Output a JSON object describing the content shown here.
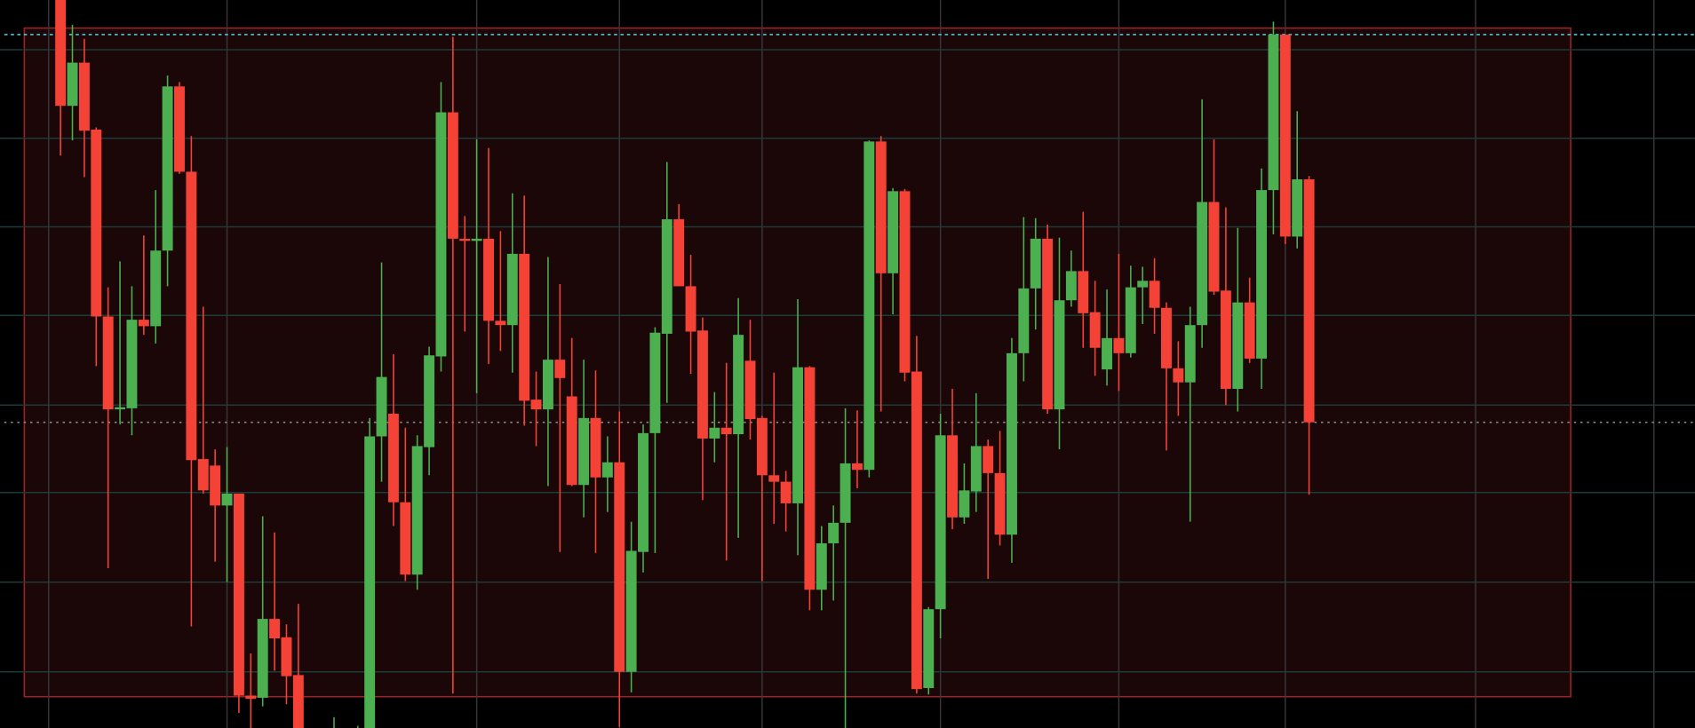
{
  "chart_data": {
    "type": "candlestick",
    "title": "",
    "xlabel": "",
    "ylabel": "",
    "ylim": [
      32.6,
      100
    ],
    "grid": true,
    "legend": "none",
    "colors": {
      "up": "#4caf50",
      "down": "#f44336",
      "background": "#000000",
      "zone_fill": "#1b0707",
      "zone_border": "#9a2424",
      "grid_h": "#1d3b38",
      "grid_v": "#3b3539",
      "last_line": "#8a8a8a",
      "high_line": "#4fc3d6"
    },
    "price_lines": [
      {
        "role": "high",
        "price": 96.8,
        "style": "dashed"
      },
      {
        "role": "last",
        "price": 60.9,
        "style": "dotted"
      }
    ],
    "zone": {
      "top": 97.4,
      "bottom": 35.5
    },
    "candle_fields": [
      "open",
      "high",
      "low",
      "close"
    ],
    "candles": [
      [
        100.5,
        101,
        85.6,
        90.2
      ],
      [
        90.2,
        97.7,
        87,
        94.2
      ],
      [
        94.2,
        96.4,
        83.6,
        87.9
      ],
      [
        88,
        88.2,
        66.1,
        70.7
      ],
      [
        70.7,
        73.4,
        47.4,
        62.1
      ],
      [
        62.1,
        75.8,
        60.7,
        62.3
      ],
      [
        62.2,
        73.5,
        59.7,
        70.4
      ],
      [
        70.4,
        78.2,
        69,
        69.8
      ],
      [
        69.8,
        82.4,
        68.2,
        76.8
      ],
      [
        76.8,
        93,
        73.5,
        92
      ],
      [
        92,
        92.4,
        83.9,
        84.1
      ],
      [
        84.1,
        87.4,
        42,
        57.4
      ],
      [
        57.5,
        71.6,
        54.3,
        54.6
      ],
      [
        56.9,
        58.4,
        48,
        53.2
      ],
      [
        53.2,
        58.6,
        46.1,
        54.3
      ],
      [
        54.3,
        54.3,
        34,
        35.6
      ],
      [
        35.6,
        39.5,
        31,
        35.3
      ],
      [
        35.4,
        52.2,
        34.6,
        42.7
      ],
      [
        42.7,
        50.7,
        37.9,
        40.9
      ],
      [
        41,
        42.2,
        34.8,
        37.4
      ],
      [
        37.5,
        44.1,
        28,
        30
      ],
      null,
      null,
      [
        28,
        33.6,
        26,
        30
      ],
      null,
      [
        28,
        32.8,
        26,
        30
      ],
      [
        30,
        61.3,
        28,
        59.6
      ],
      [
        59.6,
        75.7,
        55.4,
        65.1
      ],
      [
        61.7,
        67.2,
        51.3,
        53.5
      ],
      [
        53.5,
        60.4,
        46.2,
        46.8
      ],
      [
        46.8,
        59.7,
        45.4,
        58.7
      ],
      [
        58.6,
        67.9,
        56,
        67.1
      ],
      [
        67,
        92.4,
        65.6,
        89.6
      ],
      [
        89.6,
        96.6,
        35.8,
        77.9
      ],
      [
        77.9,
        80,
        69.3,
        77.7
      ],
      [
        77.7,
        87.1,
        63.6,
        77.9
      ],
      [
        77.9,
        86.3,
        66.3,
        70.3
      ],
      [
        70.3,
        78.6,
        67.5,
        69.9
      ],
      [
        69.9,
        82.1,
        65.5,
        76.5
      ],
      [
        76.5,
        81.9,
        60.6,
        62.9
      ],
      [
        63,
        65.6,
        58.7,
        62.1
      ],
      [
        62.1,
        76.2,
        55,
        66.7
      ],
      [
        66.7,
        73.7,
        48.9,
        65
      ],
      [
        63.3,
        68.7,
        55,
        55.1
      ],
      [
        55.1,
        66.7,
        52.1,
        61.3
      ],
      [
        61.3,
        65.7,
        48.8,
        55.8
      ],
      [
        55.8,
        59.6,
        52.6,
        57.2
      ],
      [
        57.2,
        61.9,
        32.7,
        37.8
      ],
      [
        37.8,
        51.7,
        35.9,
        49
      ],
      [
        48.9,
        60.7,
        47,
        59.9
      ],
      [
        59.9,
        69.7,
        48.8,
        69.2
      ],
      [
        69.1,
        85,
        62.7,
        79.7
      ],
      [
        79.7,
        81.1,
        73.5,
        73.5
      ],
      [
        73.5,
        76.4,
        65.4,
        69.3
      ],
      [
        69.4,
        70.6,
        53.7,
        59.4
      ],
      [
        59.4,
        63.7,
        57.2,
        60.4
      ],
      [
        60.4,
        66.4,
        48.1,
        59.8
      ],
      [
        59.8,
        72.4,
        50.2,
        69
      ],
      [
        66.6,
        70.4,
        59.3,
        61.2
      ],
      [
        61.3,
        61.5,
        46.2,
        56
      ],
      [
        56,
        65.5,
        51.5,
        55.4
      ],
      [
        55.4,
        56.4,
        50.8,
        53.4
      ],
      [
        53.4,
        72.3,
        48.6,
        66
      ],
      [
        66,
        66.1,
        43.5,
        45.4
      ],
      [
        45.4,
        51.3,
        43.5,
        49.7
      ],
      [
        49.7,
        53.2,
        44.4,
        51.6
      ],
      [
        51.6,
        62.2,
        32,
        57.1
      ],
      [
        57.1,
        62,
        54.8,
        56.5
      ],
      [
        56.5,
        87,
        55.8,
        86.9
      ],
      [
        86.9,
        87.4,
        61.9,
        74.7
      ],
      [
        74.7,
        82.6,
        70.9,
        82.3
      ],
      [
        82.3,
        82.5,
        64.7,
        65.5
      ],
      [
        65.6,
        68.9,
        35.8,
        36.2
      ],
      [
        36.3,
        43.8,
        35.7,
        43.6
      ],
      [
        43.6,
        61.7,
        40.9,
        59.7
      ],
      [
        59.7,
        64,
        51,
        52.1
      ],
      [
        52.1,
        57.1,
        51.5,
        54.6
      ],
      [
        54.5,
        63.6,
        52.6,
        58.7
      ],
      [
        58.7,
        59.3,
        46.4,
        56.2
      ],
      [
        56.2,
        60.1,
        49.5,
        50.5
      ],
      [
        50.5,
        68.7,
        47.9,
        67.3
      ],
      [
        67.3,
        79.9,
        64.7,
        73.3
      ],
      [
        73.3,
        79.8,
        69.5,
        77.9
      ],
      [
        77.9,
        79.2,
        61.7,
        62.1
      ],
      [
        62.1,
        78,
        58.4,
        72.2
      ],
      [
        72.2,
        76.8,
        71.6,
        74.9
      ],
      [
        74.9,
        80.4,
        67.8,
        71
      ],
      [
        71.1,
        74,
        65.2,
        67.8
      ],
      [
        65.8,
        73.2,
        64.3,
        68.7
      ],
      [
        68.7,
        76.5,
        63.8,
        67.3
      ],
      [
        67.3,
        75.4,
        66.9,
        73.4
      ],
      [
        73.4,
        75.3,
        70,
        74
      ],
      [
        74,
        76.1,
        69.1,
        71.5
      ],
      [
        71.5,
        72,
        58.3,
        65.9
      ],
      [
        65.9,
        68.4,
        61.5,
        64.6
      ],
      [
        64.6,
        71.6,
        51.7,
        69.9
      ],
      [
        69.9,
        90.8,
        67.8,
        81.3
      ],
      [
        81.3,
        87.1,
        72.7,
        73
      ],
      [
        73.1,
        80.8,
        62.5,
        64
      ],
      [
        64,
        78.9,
        61.9,
        72
      ],
      [
        72,
        74.3,
        66.4,
        66.8
      ],
      [
        66.8,
        84.4,
        64,
        82.4
      ],
      [
        82.4,
        98,
        78.3,
        96.8
      ],
      [
        96.8,
        96.8,
        77.4,
        78.1
      ],
      [
        78.1,
        89.7,
        77,
        83.4
      ],
      [
        83.4,
        83.7,
        54.2,
        60.9
      ]
    ]
  }
}
